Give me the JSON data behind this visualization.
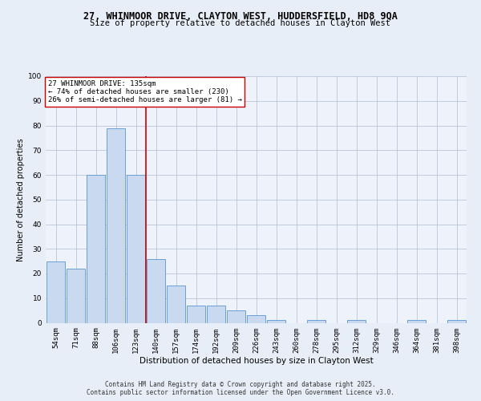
{
  "title_line1": "27, WHINMOOR DRIVE, CLAYTON WEST, HUDDERSFIELD, HD8 9QA",
  "title_line2": "Size of property relative to detached houses in Clayton West",
  "xlabel": "Distribution of detached houses by size in Clayton West",
  "ylabel": "Number of detached properties",
  "categories": [
    "54sqm",
    "71sqm",
    "88sqm",
    "106sqm",
    "123sqm",
    "140sqm",
    "157sqm",
    "174sqm",
    "192sqm",
    "209sqm",
    "226sqm",
    "243sqm",
    "260sqm",
    "278sqm",
    "295sqm",
    "312sqm",
    "329sqm",
    "346sqm",
    "364sqm",
    "381sqm",
    "398sqm"
  ],
  "values": [
    25,
    22,
    60,
    79,
    60,
    26,
    15,
    7,
    7,
    5,
    3,
    1,
    0,
    1,
    0,
    1,
    0,
    0,
    1,
    0,
    1
  ],
  "bar_color": "#c9d9f0",
  "bar_edge_color": "#6b9fd4",
  "vline_x_index": 4.5,
  "annotation_text": "27 WHINMOOR DRIVE: 135sqm\n← 74% of detached houses are smaller (230)\n26% of semi-detached houses are larger (81) →",
  "annotation_box_color": "#ffffff",
  "annotation_box_edge": "#cc0000",
  "vline_color": "#cc0000",
  "bg_color": "#e8eef7",
  "plot_bg_color": "#edf2fb",
  "footer_line1": "Contains HM Land Registry data © Crown copyright and database right 2025.",
  "footer_line2": "Contains public sector information licensed under the Open Government Licence v3.0.",
  "ylim": [
    0,
    100
  ],
  "yticks": [
    0,
    10,
    20,
    30,
    40,
    50,
    60,
    70,
    80,
    90,
    100
  ],
  "title1_fontsize": 8.5,
  "title2_fontsize": 7.5,
  "xlabel_fontsize": 7.5,
  "ylabel_fontsize": 7.0,
  "tick_fontsize": 6.5,
  "annot_fontsize": 6.5,
  "footer_fontsize": 5.5
}
